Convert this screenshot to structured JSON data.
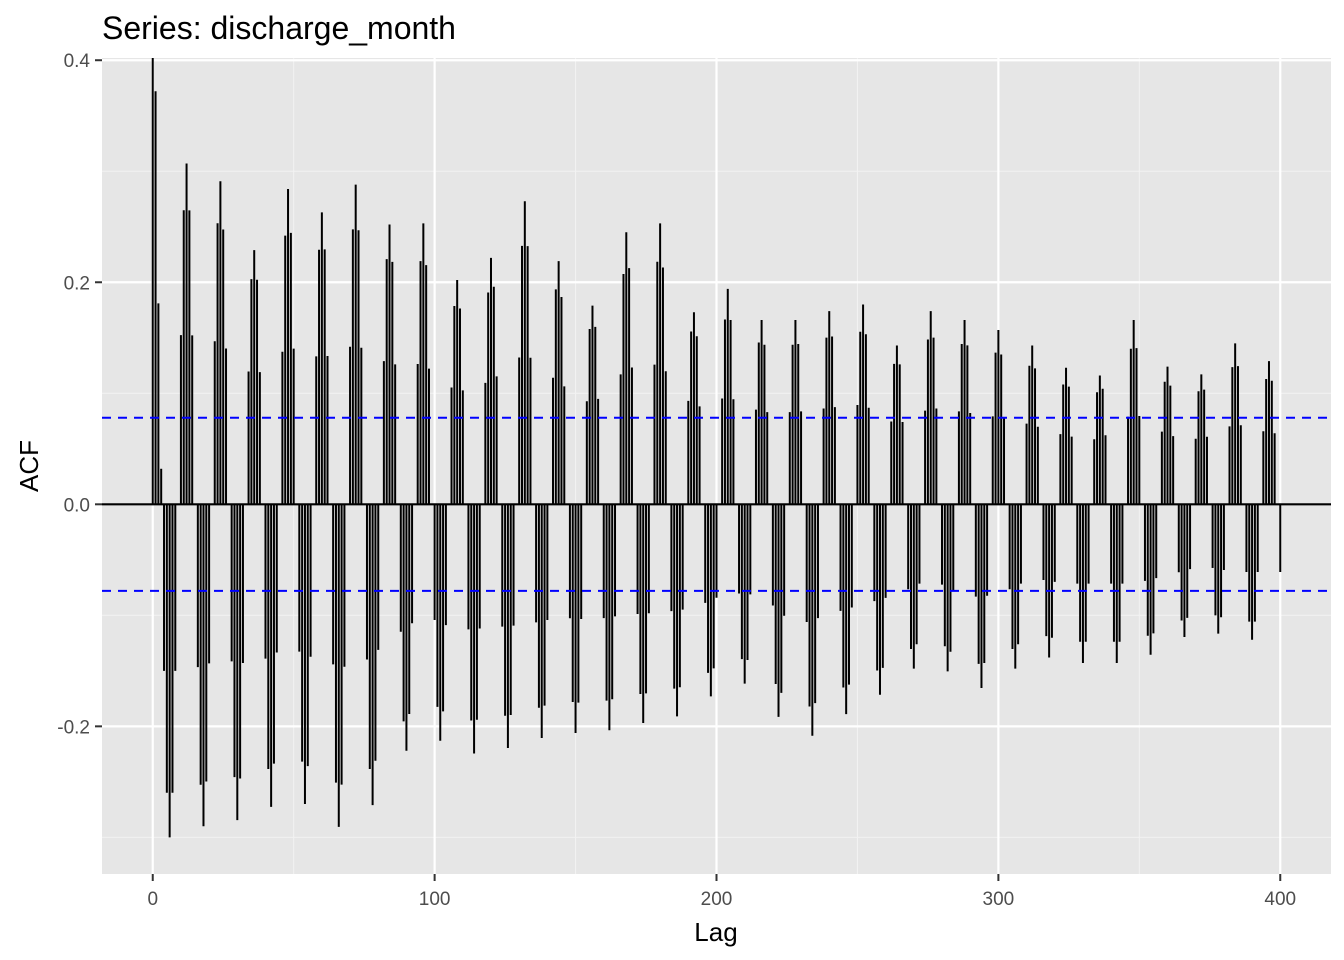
{
  "chart_data": {
    "type": "bar",
    "title": "Series: discharge_month",
    "xlabel": "Lag",
    "ylabel": "ACF",
    "xlim": [
      -18,
      418
    ],
    "ylim": [
      -0.333,
      0.402
    ],
    "x_ticks": [
      0,
      100,
      200,
      300,
      400
    ],
    "y_ticks": [
      -0.2,
      0.0,
      0.2,
      0.4
    ],
    "y_tick_labels": [
      "-0.2",
      "0.0",
      "0.2",
      "0.4"
    ],
    "grid": true,
    "confidence_bound": 0.078,
    "lag0_value": 1.0,
    "max_lag": 400,
    "period": 12,
    "envelope": {
      "lags": [
        1,
        6,
        12,
        24,
        36,
        48,
        60,
        72,
        84,
        96,
        108,
        120,
        132,
        144,
        156,
        168,
        180,
        192,
        204,
        216,
        228,
        240,
        252,
        264,
        276,
        288,
        300,
        312,
        324,
        336,
        348,
        360,
        372,
        384,
        396,
        400
      ],
      "peaks": [
        0.372,
        0.3,
        0.307,
        0.291,
        0.229,
        0.284,
        0.263,
        0.288,
        0.252,
        0.253,
        0.202,
        0.222,
        0.273,
        0.219,
        0.179,
        0.245,
        0.253,
        0.173,
        0.194,
        0.166,
        0.166,
        0.174,
        0.18,
        0.143,
        0.174,
        0.166,
        0.157,
        0.143,
        0.123,
        0.116,
        0.166,
        0.124,
        0.117,
        0.145,
        0.129,
        0.127
      ],
      "troughs": [
        -0.3,
        -0.3,
        -0.3,
        -0.28,
        -0.289,
        -0.256,
        -0.284,
        -0.297,
        -0.245,
        -0.199,
        -0.227,
        -0.222,
        -0.217,
        -0.204,
        -0.208,
        -0.199,
        -0.195,
        -0.187,
        -0.159,
        -0.164,
        -0.219,
        -0.198,
        -0.18,
        -0.163,
        -0.133,
        -0.168,
        -0.163,
        -0.133,
        -0.143,
        -0.143,
        -0.143,
        -0.128,
        -0.111,
        -0.122,
        -0.122,
        -0.122
      ]
    }
  }
}
